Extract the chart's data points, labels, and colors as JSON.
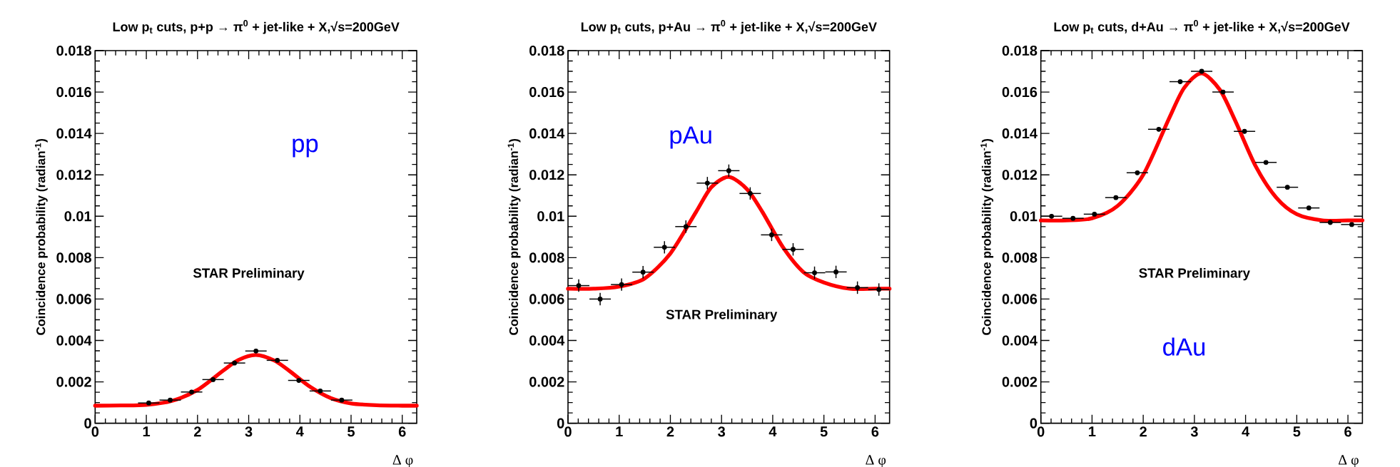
{
  "chart_data": [
    {
      "type": "scatter",
      "title": "Low p$_{t}$ cuts, p+p → π$^{0}$ + jet-like + X,√s=200GeV",
      "xlabel": "Δ φ",
      "ylabel": "Coincidence probability (radian$^{-1}$)",
      "annotations": [
        "pp",
        "STAR Preliminary"
      ],
      "xlim": [
        0,
        6.283
      ],
      "ylim": [
        0,
        0.018
      ],
      "xticks": [
        0,
        1,
        2,
        3,
        4,
        5,
        6
      ],
      "yticks": [
        0,
        0.002,
        0.004,
        0.006,
        0.008,
        0.01,
        0.012,
        0.014,
        0.016,
        0.018
      ],
      "series": [
        {
          "color": "#000000",
          "x": [
            1.047,
            1.466,
            1.885,
            2.304,
            2.723,
            3.142,
            3.56,
            3.979,
            4.398,
            4.817
          ],
          "values": [
            0.00098,
            0.00112,
            0.00151,
            0.00211,
            0.00291,
            0.00349,
            0.00304,
            0.00207,
            0.00156,
            0.00112
          ],
          "errors": [
            0.0001,
            0.0001,
            0.0001,
            0.0001,
            0.0001,
            0.0001,
            0.0001,
            0.0001,
            0.0001,
            0.0001
          ],
          "xerrors": [
            0.209,
            0.209,
            0.209,
            0.209,
            0.209,
            0.209,
            0.209,
            0.209,
            0.209,
            0.209
          ]
        },
        {
          "type": "line",
          "color": "#ff0000",
          "x": [
            0,
            0.5,
            1.0,
            1.5,
            2.0,
            2.5,
            2.8,
            3.14,
            3.5,
            3.8,
            4.2,
            4.6,
            5.0,
            5.5,
            6.0,
            6.283
          ],
          "values": [
            0.00085,
            0.00086,
            0.00089,
            0.00108,
            0.00161,
            0.00254,
            0.00306,
            0.0033,
            0.00303,
            0.00252,
            0.00176,
            0.00122,
            0.00096,
            0.00087,
            0.00085,
            0.00085
          ]
        }
      ]
    },
    {
      "type": "scatter",
      "title": "Low p$_{t}$ cuts, p+Au → π$^{0}$ + jet-like + X,√s=200GeV",
      "xlabel": "Δ φ",
      "ylabel": "Coincidence probability (radian$^{-1}$)",
      "annotations": [
        "pAu",
        "STAR Preliminary"
      ],
      "xlim": [
        0,
        6.283
      ],
      "ylim": [
        0,
        0.018
      ],
      "xticks": [
        0,
        1,
        2,
        3,
        4,
        5,
        6
      ],
      "yticks": [
        0,
        0.002,
        0.004,
        0.006,
        0.008,
        0.01,
        0.012,
        0.014,
        0.016,
        0.018
      ],
      "series": [
        {
          "color": "#000000",
          "x": [
            0.209,
            0.628,
            1.047,
            1.466,
            1.885,
            2.304,
            2.723,
            3.142,
            3.56,
            3.979,
            4.398,
            4.817,
            5.236,
            5.655,
            6.074
          ],
          "values": [
            0.00665,
            0.006,
            0.0067,
            0.0073,
            0.0085,
            0.0095,
            0.0116,
            0.0122,
            0.0111,
            0.0091,
            0.0084,
            0.00727,
            0.00731,
            0.00655,
            0.00646
          ],
          "errors": [
            0.0003,
            0.0003,
            0.0003,
            0.0003,
            0.0003,
            0.0003,
            0.0003,
            0.0003,
            0.0003,
            0.0003,
            0.0003,
            0.0003,
            0.0003,
            0.0003,
            0.0003
          ],
          "xerrors": [
            0.209,
            0.209,
            0.209,
            0.209,
            0.209,
            0.209,
            0.209,
            0.209,
            0.209,
            0.209,
            0.209,
            0.209,
            0.209,
            0.209,
            0.209
          ]
        },
        {
          "type": "line",
          "color": "#ff0000",
          "x": [
            0,
            0.5,
            1.0,
            1.5,
            2.0,
            2.5,
            2.8,
            3.14,
            3.5,
            3.8,
            4.2,
            4.6,
            5.0,
            5.5,
            6.0,
            6.283
          ],
          "values": [
            0.0065,
            0.0065,
            0.0066,
            0.007,
            0.0082,
            0.0102,
            0.0114,
            0.0119,
            0.0113,
            0.0102,
            0.0085,
            0.0073,
            0.0068,
            0.0065,
            0.0065,
            0.0065
          ]
        }
      ]
    },
    {
      "type": "scatter",
      "title": "Low p$_{t}$ cuts, d+Au → π$^{0}$ + jet-like + X,√s=200GeV",
      "xlabel": "Δ φ",
      "ylabel": "Coincidence probability (radian$^{-1}$)",
      "annotations": [
        "dAu",
        "STAR Preliminary"
      ],
      "xlim": [
        0,
        6.283
      ],
      "ylim": [
        0,
        0.018
      ],
      "xticks": [
        0,
        1,
        2,
        3,
        4,
        5,
        6
      ],
      "yticks": [
        0,
        0.002,
        0.004,
        0.006,
        0.008,
        0.01,
        0.012,
        0.014,
        0.016,
        0.018
      ],
      "series": [
        {
          "color": "#000000",
          "x": [
            0.209,
            0.628,
            1.047,
            1.466,
            1.885,
            2.304,
            2.723,
            3.142,
            3.56,
            3.979,
            4.398,
            4.817,
            5.236,
            5.655,
            6.074
          ],
          "values": [
            0.01,
            0.0099,
            0.0101,
            0.0109,
            0.0121,
            0.0142,
            0.0165,
            0.017,
            0.016,
            0.0141,
            0.0126,
            0.0114,
            0.0104,
            0.0097,
            0.0096
          ],
          "errors": [
            0.0001,
            0.0001,
            0.0001,
            0.0001,
            0.0001,
            0.0001,
            0.0001,
            0.0001,
            0.0001,
            0.0001,
            0.0001,
            0.0001,
            0.0001,
            0.0001,
            0.0001
          ],
          "xerrors": [
            0.209,
            0.209,
            0.209,
            0.209,
            0.209,
            0.209,
            0.209,
            0.209,
            0.209,
            0.209,
            0.209,
            0.209,
            0.209,
            0.209,
            0.209
          ]
        },
        {
          "type": "line",
          "color": "#ff0000",
          "x": [
            0,
            0.5,
            1.0,
            1.5,
            2.0,
            2.5,
            2.8,
            3.14,
            3.5,
            3.8,
            4.2,
            4.6,
            5.0,
            5.5,
            6.0,
            6.283
          ],
          "values": [
            0.0098,
            0.0098,
            0.0099,
            0.0105,
            0.012,
            0.0147,
            0.0162,
            0.0169,
            0.0161,
            0.0146,
            0.0124,
            0.0109,
            0.0101,
            0.0098,
            0.0098,
            0.0098
          ]
        }
      ]
    }
  ]
}
